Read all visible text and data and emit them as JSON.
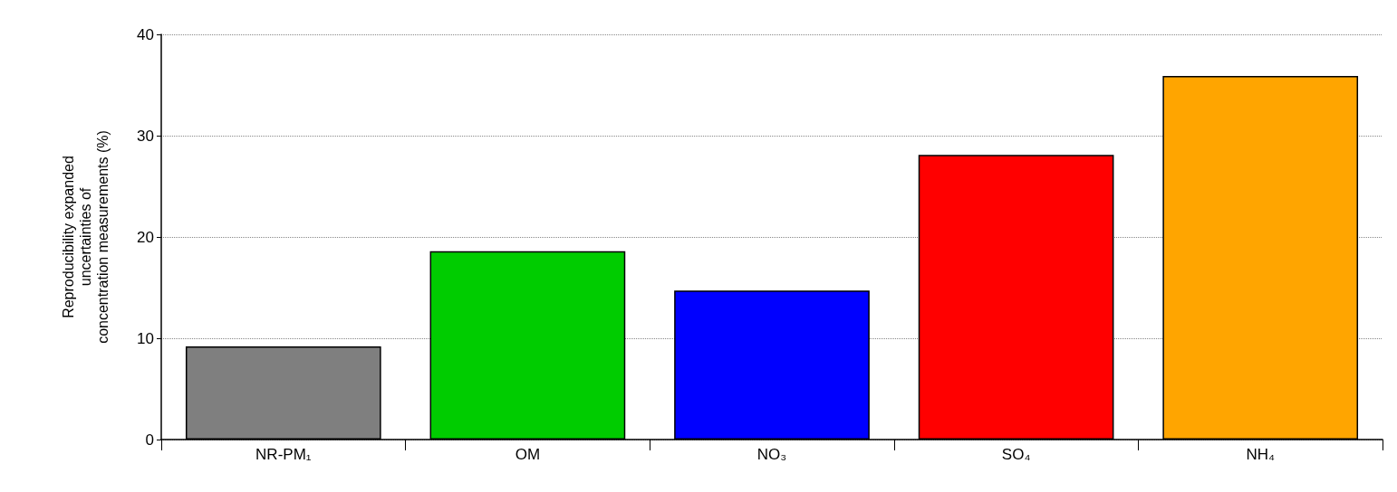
{
  "chart_data": {
    "type": "bar",
    "ylabel": "Reproducibility expanded\nuncertainties of\nconcentration measurements (%)",
    "categories": [
      "NR-PM₁",
      "OM",
      "NO₃",
      "SO₄",
      "NH₄"
    ],
    "values": [
      9.2,
      18.6,
      14.7,
      28.1,
      35.9
    ],
    "colors": [
      "#7f7f7f",
      "#00cc00",
      "#0000ff",
      "#ff0000",
      "#ffa500"
    ],
    "ylim": [
      0,
      40
    ],
    "yticks": [
      0,
      10,
      20,
      30,
      40
    ],
    "grid": "y"
  }
}
